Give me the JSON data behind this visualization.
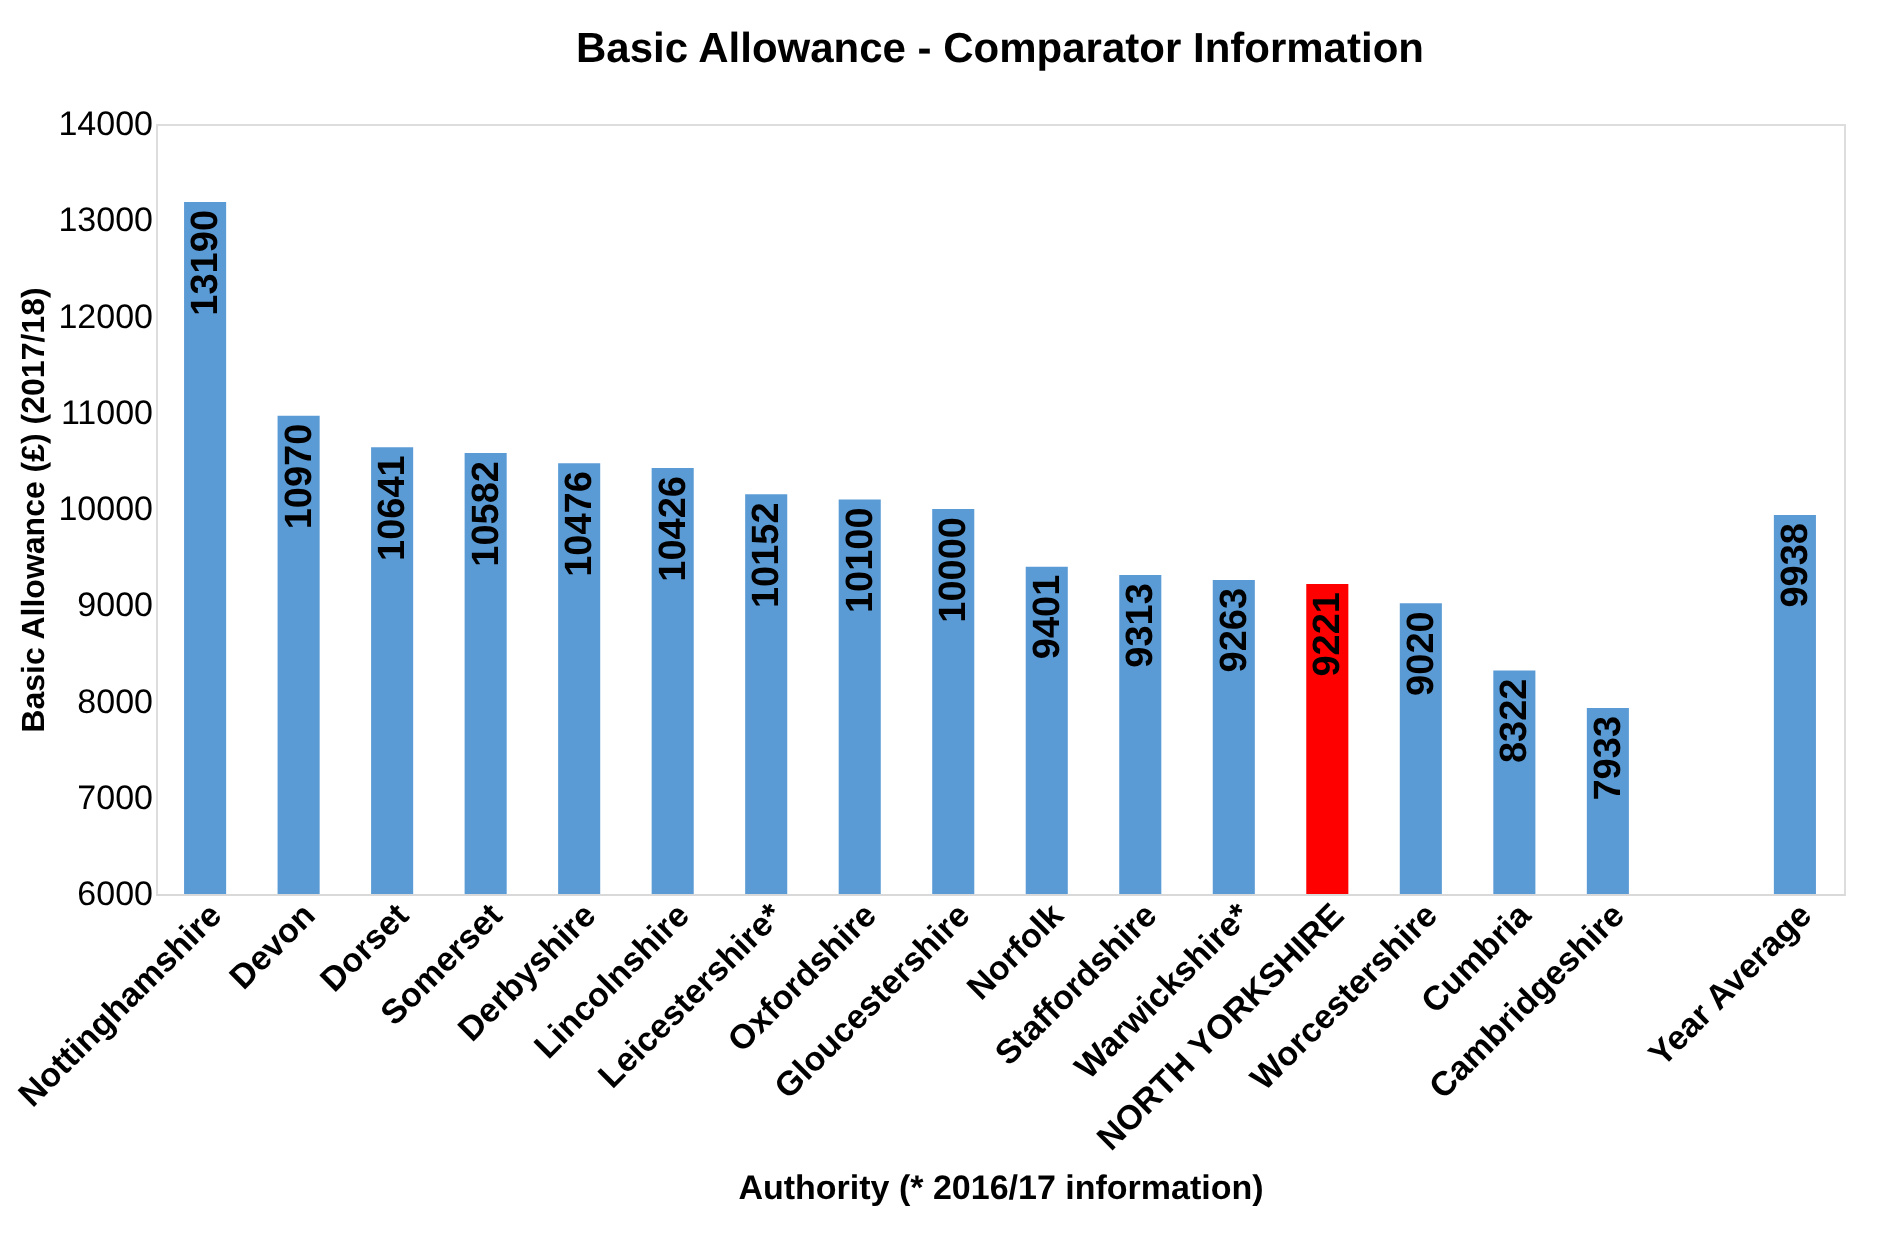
{
  "chart_data": {
    "type": "bar",
    "title": "Basic Allowance - Comparator Information",
    "xlabel": "Authority (* 2016/17 information)",
    "ylabel": "Basic Allowance (£) (2017/18)",
    "categories": [
      "Nottinghamshire",
      "Devon",
      "Dorset",
      "Somerset",
      "Derbyshire",
      "Lincolnshire",
      "Leicestershire*",
      "Oxfordshire",
      "Gloucestershire",
      "Norfolk",
      "Staffordshire",
      "Warwickshire*",
      "NORTH YORKSHIRE",
      "Worcestershire",
      "Cumbria",
      "Cambridgeshire",
      null,
      "Year Average"
    ],
    "values": [
      13190,
      10970,
      10641,
      10582,
      10476,
      10426,
      10152,
      10100,
      10000,
      9401,
      9313,
      9263,
      9221,
      9020,
      8322,
      7933,
      null,
      9938
    ],
    "colors": [
      "#5b9bd5",
      "#5b9bd5",
      "#5b9bd5",
      "#5b9bd5",
      "#5b9bd5",
      "#5b9bd5",
      "#5b9bd5",
      "#5b9bd5",
      "#5b9bd5",
      "#5b9bd5",
      "#5b9bd5",
      "#5b9bd5",
      "#ff0000",
      "#5b9bd5",
      "#5b9bd5",
      "#5b9bd5",
      null,
      "#5b9bd5"
    ],
    "ylim": [
      6000,
      14000
    ],
    "yticks": [
      6000,
      7000,
      8000,
      9000,
      10000,
      11000,
      12000,
      13000,
      14000
    ],
    "data_labels": true,
    "grid": false
  }
}
